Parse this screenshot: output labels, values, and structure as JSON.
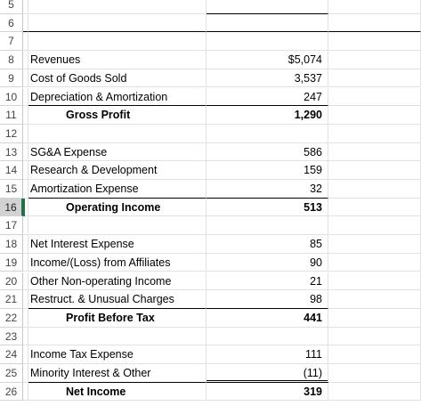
{
  "rows": [
    {
      "num": "5",
      "label": "",
      "value": "",
      "bold": false
    },
    {
      "num": "6",
      "label": "",
      "value": "",
      "bold": false
    },
    {
      "num": "7",
      "label": "",
      "value": "",
      "bold": false
    },
    {
      "num": "8",
      "label": "Revenues",
      "value": "$5,074",
      "bold": false
    },
    {
      "num": "9",
      "label": "Cost of Goods Sold",
      "value": "3,537",
      "bold": false
    },
    {
      "num": "10",
      "label": "Depreciation & Amortization",
      "value": "247",
      "bold": false
    },
    {
      "num": "11",
      "label": "Gross Profit",
      "value": "1,290",
      "bold": true
    },
    {
      "num": "12",
      "label": "",
      "value": "",
      "bold": false
    },
    {
      "num": "13",
      "label": "SG&A Expense",
      "value": "586",
      "bold": false
    },
    {
      "num": "14",
      "label": "Research & Development",
      "value": "159",
      "bold": false
    },
    {
      "num": "15",
      "label": "Amortization Expense",
      "value": "32",
      "bold": false
    },
    {
      "num": "16",
      "label": "Operating Income",
      "value": "513",
      "bold": true
    },
    {
      "num": "17",
      "label": "",
      "value": "",
      "bold": false
    },
    {
      "num": "18",
      "label": "Net Interest Expense",
      "value": "85",
      "bold": false
    },
    {
      "num": "19",
      "label": "Income/(Loss) from Affiliates",
      "value": "90",
      "bold": false
    },
    {
      "num": "20",
      "label": "Other Non-operating Income",
      "value": "21",
      "bold": false
    },
    {
      "num": "21",
      "label": "Restruct. & Unusual Charges",
      "value": "98",
      "bold": false
    },
    {
      "num": "22",
      "label": "Profit Before Tax",
      "value": "441",
      "bold": true
    },
    {
      "num": "23",
      "label": "",
      "value": "",
      "bold": false
    },
    {
      "num": "24",
      "label": "Income Tax Expense",
      "value": "111",
      "bold": false
    },
    {
      "num": "25",
      "label": "Minority Interest & Other",
      "value": "(11)",
      "bold": false
    },
    {
      "num": "26",
      "label": "Net Income",
      "value": "319",
      "bold": true
    }
  ],
  "colors": {
    "selection_accent": "#217346",
    "gridline": "#e2e2e2",
    "header_border": "#c6c6c6"
  }
}
